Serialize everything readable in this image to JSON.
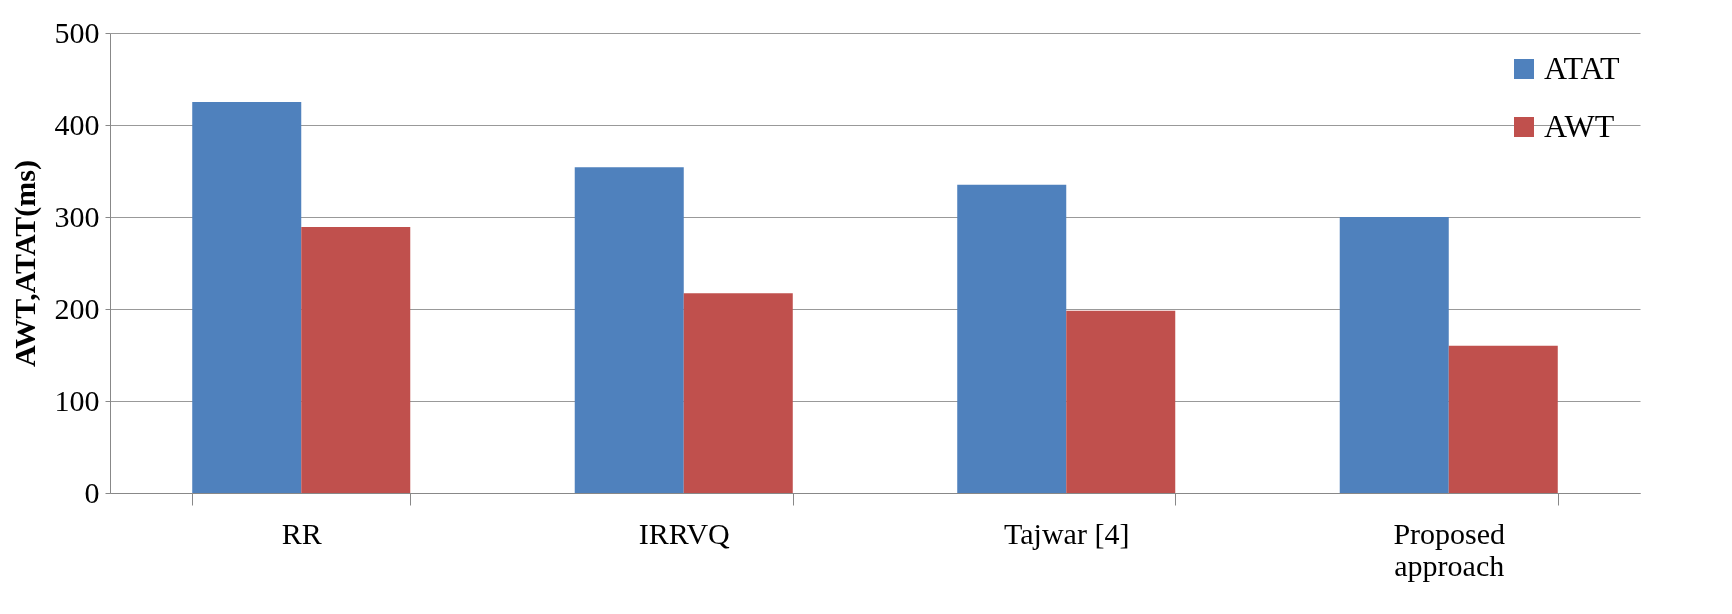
{
  "chart_data": {
    "type": "bar",
    "ylabel": "AWT,ATAT(ms)",
    "categories": [
      "RR",
      "IRRVQ",
      "Tajwar [4]",
      "Proposed approach"
    ],
    "series": [
      {
        "name": "ATAT",
        "color": "#4f81bd",
        "values": [
          425,
          354,
          335,
          300
        ]
      },
      {
        "name": "AWT",
        "color": "#c0504d",
        "values": [
          289,
          217,
          198,
          160
        ]
      }
    ],
    "ylim": [
      0,
      500
    ],
    "yticks": [
      0,
      100,
      200,
      300,
      400,
      500
    ],
    "grid": "y",
    "legend": "top right"
  }
}
